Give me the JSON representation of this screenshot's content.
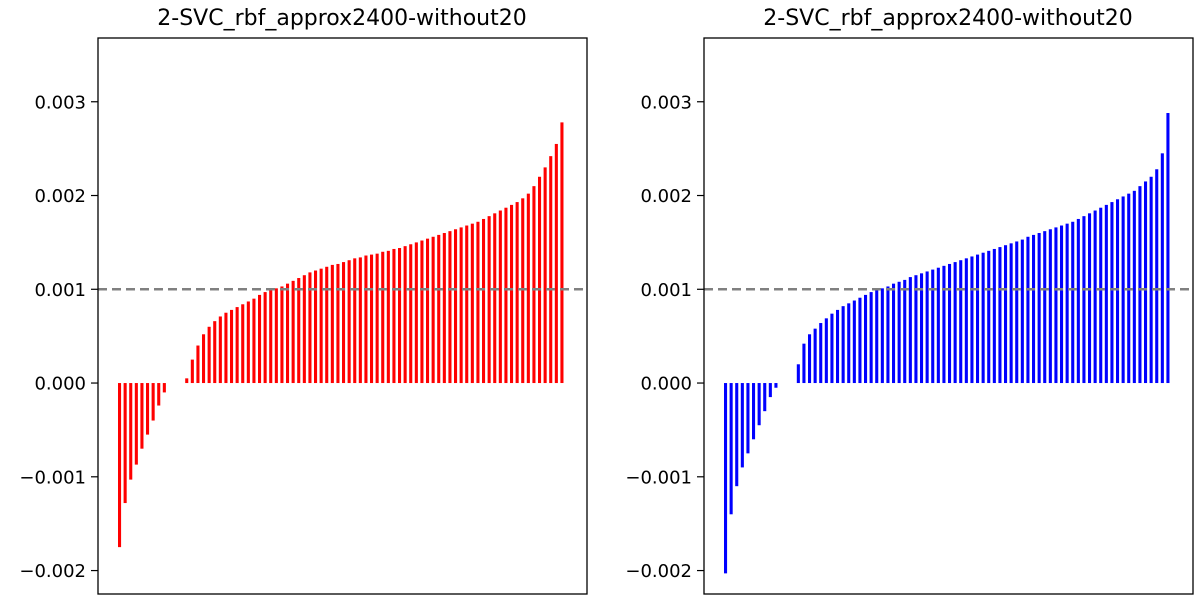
{
  "chart_data": [
    {
      "type": "bar",
      "title": "2-SVC_rbf_approx2400-without20",
      "color": "#ff0000",
      "ylim": [
        -0.00225,
        0.00368
      ],
      "yticks": [
        -0.002,
        -0.001,
        0.0,
        0.001,
        0.002,
        0.003
      ],
      "ytick_labels": [
        "−0.002",
        "−0.001",
        "0.000",
        "0.001",
        "0.002",
        "0.003"
      ],
      "hline": {
        "y": 0.001,
        "style": "dashed",
        "color": "#808080"
      },
      "xticks": false,
      "n_bars": 80,
      "bar_fill": 0.55,
      "values": [
        -0.00175,
        -0.00128,
        -0.00103,
        -0.00087,
        -0.0007,
        -0.00055,
        -0.0004,
        -0.00024,
        -0.0001,
        0.0,
        0.0,
        0.0,
        5e-05,
        0.00025,
        0.0004,
        0.00052,
        0.0006,
        0.00066,
        0.00071,
        0.00075,
        0.00078,
        0.00081,
        0.00084,
        0.00087,
        0.0009,
        0.00094,
        0.00097,
        0.00099,
        0.00101,
        0.00103,
        0.00106,
        0.00109,
        0.00112,
        0.00115,
        0.00118,
        0.0012,
        0.00122,
        0.00124,
        0.00126,
        0.00127,
        0.00129,
        0.00131,
        0.00133,
        0.00134,
        0.00136,
        0.00137,
        0.00138,
        0.0014,
        0.00141,
        0.00143,
        0.00144,
        0.00146,
        0.00148,
        0.0015,
        0.00152,
        0.00154,
        0.00156,
        0.00158,
        0.0016,
        0.00162,
        0.00164,
        0.00166,
        0.00168,
        0.0017,
        0.00172,
        0.00175,
        0.00178,
        0.00181,
        0.00184,
        0.00187,
        0.0019,
        0.00193,
        0.00197,
        0.00202,
        0.0021,
        0.0022,
        0.0023,
        0.00242,
        0.00255,
        0.00278
      ]
    },
    {
      "type": "bar",
      "title": "2-SVC_rbf_approx2400-without20",
      "color": "#0000ff",
      "ylim": [
        -0.00225,
        0.00368
      ],
      "yticks": [
        -0.002,
        -0.001,
        0.0,
        0.001,
        0.002,
        0.003
      ],
      "ytick_labels": [
        "−0.002",
        "−0.001",
        "0.000",
        "0.001",
        "0.002",
        "0.003"
      ],
      "hline": {
        "y": 0.001,
        "style": "dashed",
        "color": "#808080"
      },
      "xticks": false,
      "n_bars": 80,
      "bar_fill": 0.55,
      "values": [
        -0.00203,
        -0.0014,
        -0.0011,
        -0.0009,
        -0.00075,
        -0.0006,
        -0.00045,
        -0.0003,
        -0.00015,
        -5e-05,
        0.0,
        0.0,
        0.0,
        0.0002,
        0.00042,
        0.00052,
        0.00058,
        0.00064,
        0.00069,
        0.00074,
        0.00078,
        0.00082,
        0.00085,
        0.00088,
        0.00091,
        0.00094,
        0.00097,
        0.00099,
        0.00101,
        0.00103,
        0.00106,
        0.00108,
        0.0011,
        0.00113,
        0.00115,
        0.00117,
        0.00119,
        0.00121,
        0.00123,
        0.00125,
        0.00127,
        0.00129,
        0.00131,
        0.00133,
        0.00135,
        0.00137,
        0.00139,
        0.00141,
        0.00143,
        0.00145,
        0.00147,
        0.00149,
        0.00151,
        0.00153,
        0.00156,
        0.00158,
        0.0016,
        0.00162,
        0.00164,
        0.00166,
        0.00168,
        0.0017,
        0.00172,
        0.00175,
        0.00178,
        0.00181,
        0.00184,
        0.00187,
        0.0019,
        0.00193,
        0.00196,
        0.00199,
        0.00202,
        0.00205,
        0.0021,
        0.00215,
        0.0022,
        0.00228,
        0.00245,
        0.00288
      ]
    }
  ]
}
